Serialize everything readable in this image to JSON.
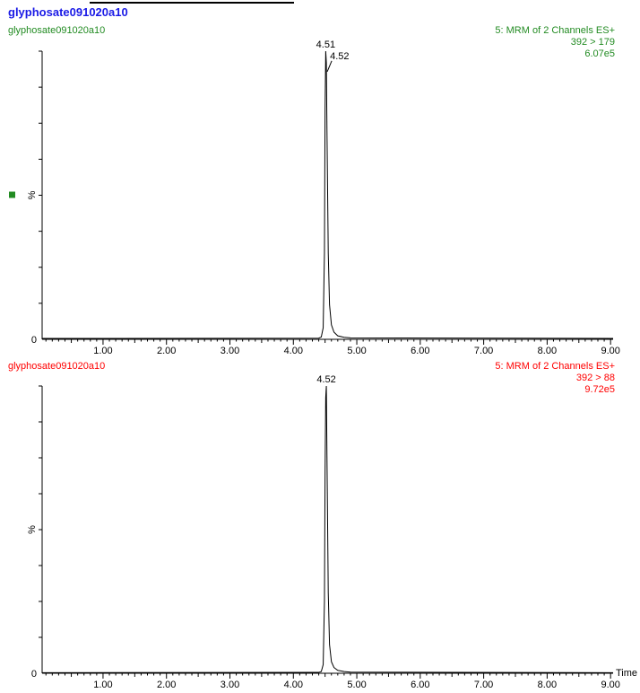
{
  "header": {
    "title": "glyphosate091020a10"
  },
  "chart_data": [
    {
      "type": "line",
      "sample_name": "glyphosate091020a10",
      "function_label": "5: MRM of 2 Channels ES+",
      "transition": "392 > 179",
      "intensity": "6.07e5",
      "color": "#228b22",
      "ylabel": "%",
      "y_tick_labels": [
        "0"
      ],
      "x_tick_labels": [
        "1.00",
        "2.00",
        "3.00",
        "4.00",
        "5.00",
        "6.00",
        "7.00",
        "8.00",
        "9.00"
      ],
      "xlabel": "",
      "xlim": [
        0.04,
        9.04
      ],
      "ylim": [
        0,
        100
      ],
      "peak_labels": [
        {
          "time": "4.51",
          "x": 4.51,
          "y": 100
        },
        {
          "time": "4.52",
          "x": 4.52,
          "y": 96
        }
      ],
      "marker_color": "#228b22",
      "series": [
        {
          "x": [
            0.04,
            4.4,
            4.44,
            4.47,
            4.49,
            4.5,
            4.51,
            4.52,
            4.53,
            4.55,
            4.57,
            4.6,
            4.64,
            4.7,
            4.8,
            4.9,
            9.04
          ],
          "values": [
            0.3,
            0.4,
            0.8,
            4,
            30,
            80,
            100,
            96,
            72,
            30,
            12,
            5,
            2.5,
            1.2,
            0.7,
            0.5,
            0.3
          ]
        }
      ]
    },
    {
      "type": "line",
      "sample_name": "glyphosate091020a10",
      "function_label": "5: MRM of 2 Channels ES+",
      "transition": "392 > 88",
      "intensity": "9.72e5",
      "color": "#ff0000",
      "ylabel": "%",
      "y_tick_labels": [
        "0"
      ],
      "x_tick_labels": [
        "1.00",
        "2.00",
        "3.00",
        "4.00",
        "5.00",
        "6.00",
        "7.00",
        "8.00",
        "9.00"
      ],
      "xlabel": "Time",
      "xlim": [
        0.04,
        9.04
      ],
      "ylim": [
        0,
        100
      ],
      "peak_labels": [
        {
          "time": "4.52",
          "x": 4.52,
          "y": 100
        }
      ],
      "series": [
        {
          "x": [
            0.04,
            4.4,
            4.44,
            4.47,
            4.49,
            4.5,
            4.51,
            4.52,
            4.53,
            4.55,
            4.57,
            4.6,
            4.64,
            4.7,
            4.8,
            4.9,
            9.04
          ],
          "values": [
            0.2,
            0.3,
            0.6,
            3,
            25,
            70,
            96,
            100,
            75,
            28,
            10,
            4,
            2,
            1,
            0.6,
            0.4,
            0.2
          ]
        }
      ]
    }
  ]
}
